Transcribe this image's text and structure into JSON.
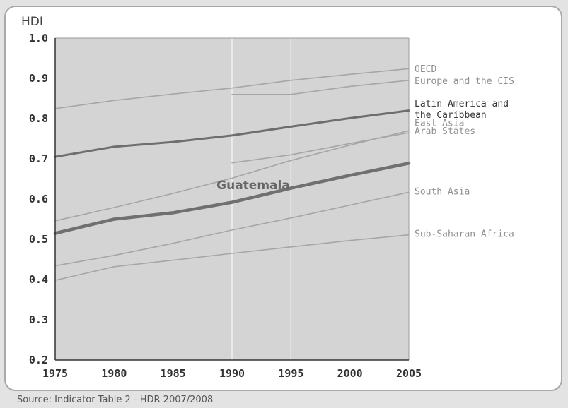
{
  "chart_data": {
    "type": "line",
    "ylabel": "HDI",
    "xlabel": "",
    "xlim": [
      1975,
      2005
    ],
    "ylim": [
      0.2,
      1.0
    ],
    "x_ticks": [
      1975,
      1980,
      1985,
      1990,
      1995,
      2000,
      2005
    ],
    "y_ticks": [
      0.2,
      0.3,
      0.4,
      0.5,
      0.6,
      0.7,
      0.8,
      0.9,
      1.0
    ],
    "y_tick_labels": [
      "0.2",
      "0.3",
      "0.4",
      "0.5",
      "0.6",
      "0.7",
      "0.8",
      "0.9",
      "1.0"
    ],
    "grid": "vertical at 1990 and 1995",
    "legend": "labels at right end of lines",
    "series": [
      {
        "name": "OECD",
        "style": "thin",
        "color": "#a6a6a6",
        "x": [
          1975,
          1980,
          1985,
          1990,
          1995,
          2000,
          2005
        ],
        "y": [
          0.825,
          0.845,
          0.861,
          0.876,
          0.895,
          0.91,
          0.924
        ],
        "label_y": 0.925
      },
      {
        "name": "Europe and the CIS",
        "style": "thin",
        "color": "#a6a6a6",
        "x": [
          1990,
          1995,
          2000,
          2005
        ],
        "y": [
          0.86,
          0.86,
          0.88,
          0.895
        ],
        "label_y": 0.895
      },
      {
        "name": "Latin America and\nthe Caribbean",
        "style": "medium",
        "color": "#6e6e6e",
        "label_lines": [
          "Latin America and",
          "the Caribbean"
        ],
        "x": [
          1975,
          1980,
          1985,
          1990,
          1995,
          2000,
          2005
        ],
        "y": [
          0.705,
          0.73,
          0.742,
          0.758,
          0.78,
          0.801,
          0.82
        ],
        "label_y": 0.825
      },
      {
        "name": "East Asia",
        "style": "thin",
        "color": "#a6a6a6",
        "x": [
          1975,
          1980,
          1985,
          1990,
          1995,
          2000,
          2005
        ],
        "y": [
          0.546,
          0.579,
          0.614,
          0.652,
          0.696,
          0.734,
          0.77
        ],
        "label_y": 0.79
      },
      {
        "name": "Arab States",
        "style": "thin",
        "color": "#a6a6a6",
        "x": [
          1990,
          1995,
          2000,
          2005
        ],
        "y": [
          0.69,
          0.71,
          0.738,
          0.765
        ],
        "label_y": 0.77
      },
      {
        "name": "Guatemala",
        "style": "thick",
        "color": "#707070",
        "x": [
          1975,
          1980,
          1985,
          1990,
          1995,
          2000,
          2005
        ],
        "y": [
          0.515,
          0.55,
          0.566,
          0.592,
          0.627,
          0.659,
          0.689
        ],
        "label_at": [
          1991.8,
          0.635
        ]
      },
      {
        "name": "South Asia",
        "style": "thin",
        "color": "#a6a6a6",
        "x": [
          1975,
          1980,
          1985,
          1990,
          1995,
          2000,
          2005
        ],
        "y": [
          0.434,
          0.46,
          0.49,
          0.523,
          0.553,
          0.585,
          0.617
        ],
        "label_y": 0.62
      },
      {
        "name": "Sub-Saharan Africa",
        "style": "thin",
        "color": "#a6a6a6",
        "x": [
          1975,
          1980,
          1985,
          1990,
          1995,
          2000,
          2005
        ],
        "y": [
          0.398,
          0.432,
          0.448,
          0.465,
          0.481,
          0.497,
          0.511
        ],
        "label_y": 0.515
      }
    ]
  },
  "source": "Source: Indicator Table 2 - HDR 2007/2008",
  "colors": {
    "plot_bg": "#d4d4d4",
    "grid": "#f2f2f2",
    "axis": "#333333",
    "label_dark": "#333333",
    "label_light": "#8f8f8f",
    "guatemala_label": "#666666"
  }
}
